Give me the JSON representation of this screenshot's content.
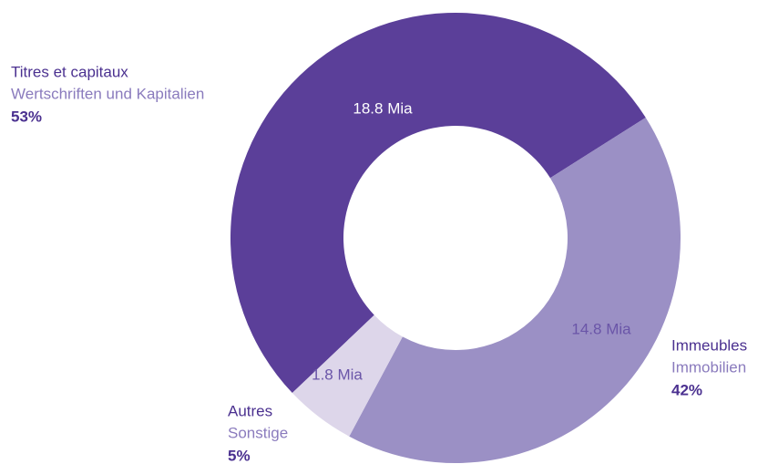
{
  "chart_data": {
    "type": "donut",
    "categories": [
      "Titres et capitaux",
      "Immeubles",
      "Autres"
    ],
    "categories_de": [
      "Wertschriften und Kapitalien",
      "Immobilien",
      "Sonstige"
    ],
    "values": [
      18.8,
      14.8,
      1.8
    ],
    "value_labels": [
      "18.8 Mia",
      "14.8 Mia",
      "1.8 Mia"
    ],
    "shares": [
      53,
      42,
      5
    ],
    "share_labels": [
      "53%",
      "42%",
      "5%"
    ],
    "colors": [
      "#5b3f99",
      "#9b90c5",
      "#ddd6ea"
    ]
  }
}
